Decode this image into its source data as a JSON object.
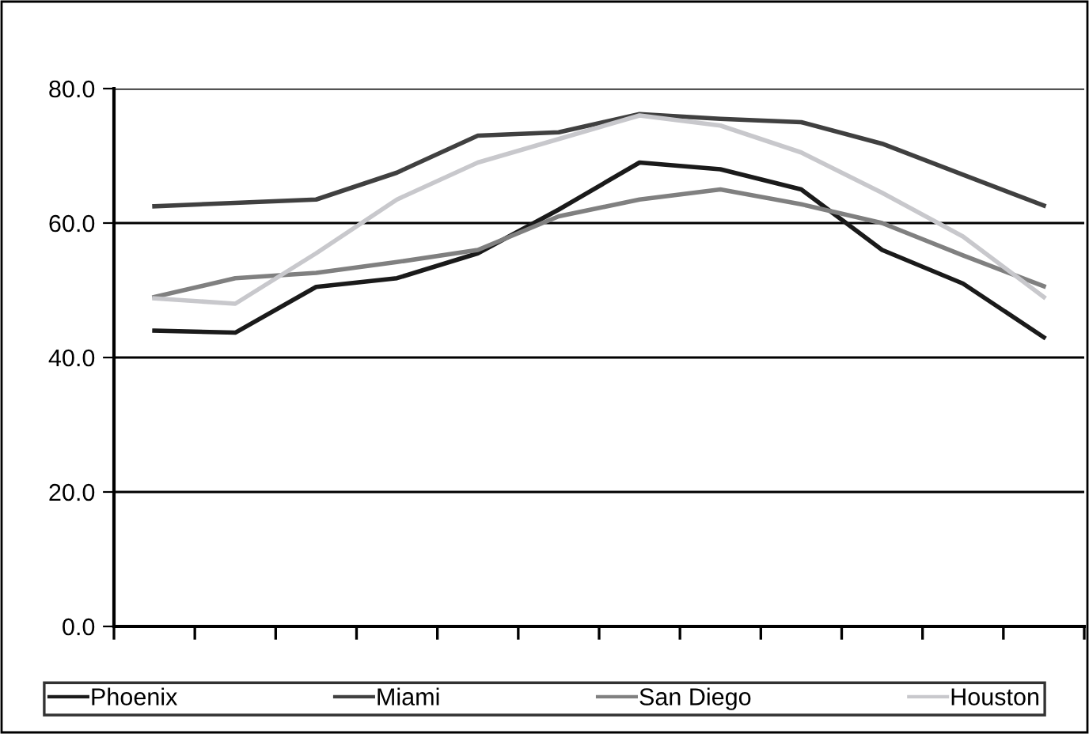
{
  "chart_data": {
    "type": "line",
    "categories": [
      null,
      null,
      null,
      null,
      null,
      null,
      null,
      null,
      null,
      null,
      null,
      null
    ],
    "series": [
      {
        "name": "Phoenix",
        "color": "#1a1a1a",
        "values": [
          44,
          43.7,
          50.5,
          51.8,
          55.5,
          62,
          69,
          68,
          65,
          56,
          51,
          43
        ]
      },
      {
        "name": "Miami",
        "color": "#404040",
        "values": [
          62.5,
          63,
          63.5,
          67.5,
          73,
          73.5,
          76.2,
          75.5,
          75,
          71.8,
          67.2,
          62.6
        ]
      },
      {
        "name": "San Diego",
        "color": "#808080",
        "values": [
          49,
          51.8,
          52.6,
          54.2,
          56,
          61,
          63.5,
          65,
          62.8,
          60,
          55.2,
          50.6
        ]
      },
      {
        "name": "Houston",
        "color": "#c8c8cc",
        "values": [
          48.8,
          48,
          55.5,
          63.5,
          69,
          72.5,
          76,
          74.5,
          70.5,
          64.5,
          58,
          49
        ]
      }
    ],
    "ylim": [
      0,
      80
    ],
    "yticks": [
      {
        "value": 0,
        "label": "0.0"
      },
      {
        "value": 20,
        "label": "20.0"
      },
      {
        "value": 40,
        "label": "40.0"
      },
      {
        "value": 60,
        "label": "60.0"
      },
      {
        "value": 80,
        "label": "80.0"
      }
    ],
    "grid": "y",
    "legend": "bottom",
    "marker": "none",
    "line_style": "solid"
  }
}
